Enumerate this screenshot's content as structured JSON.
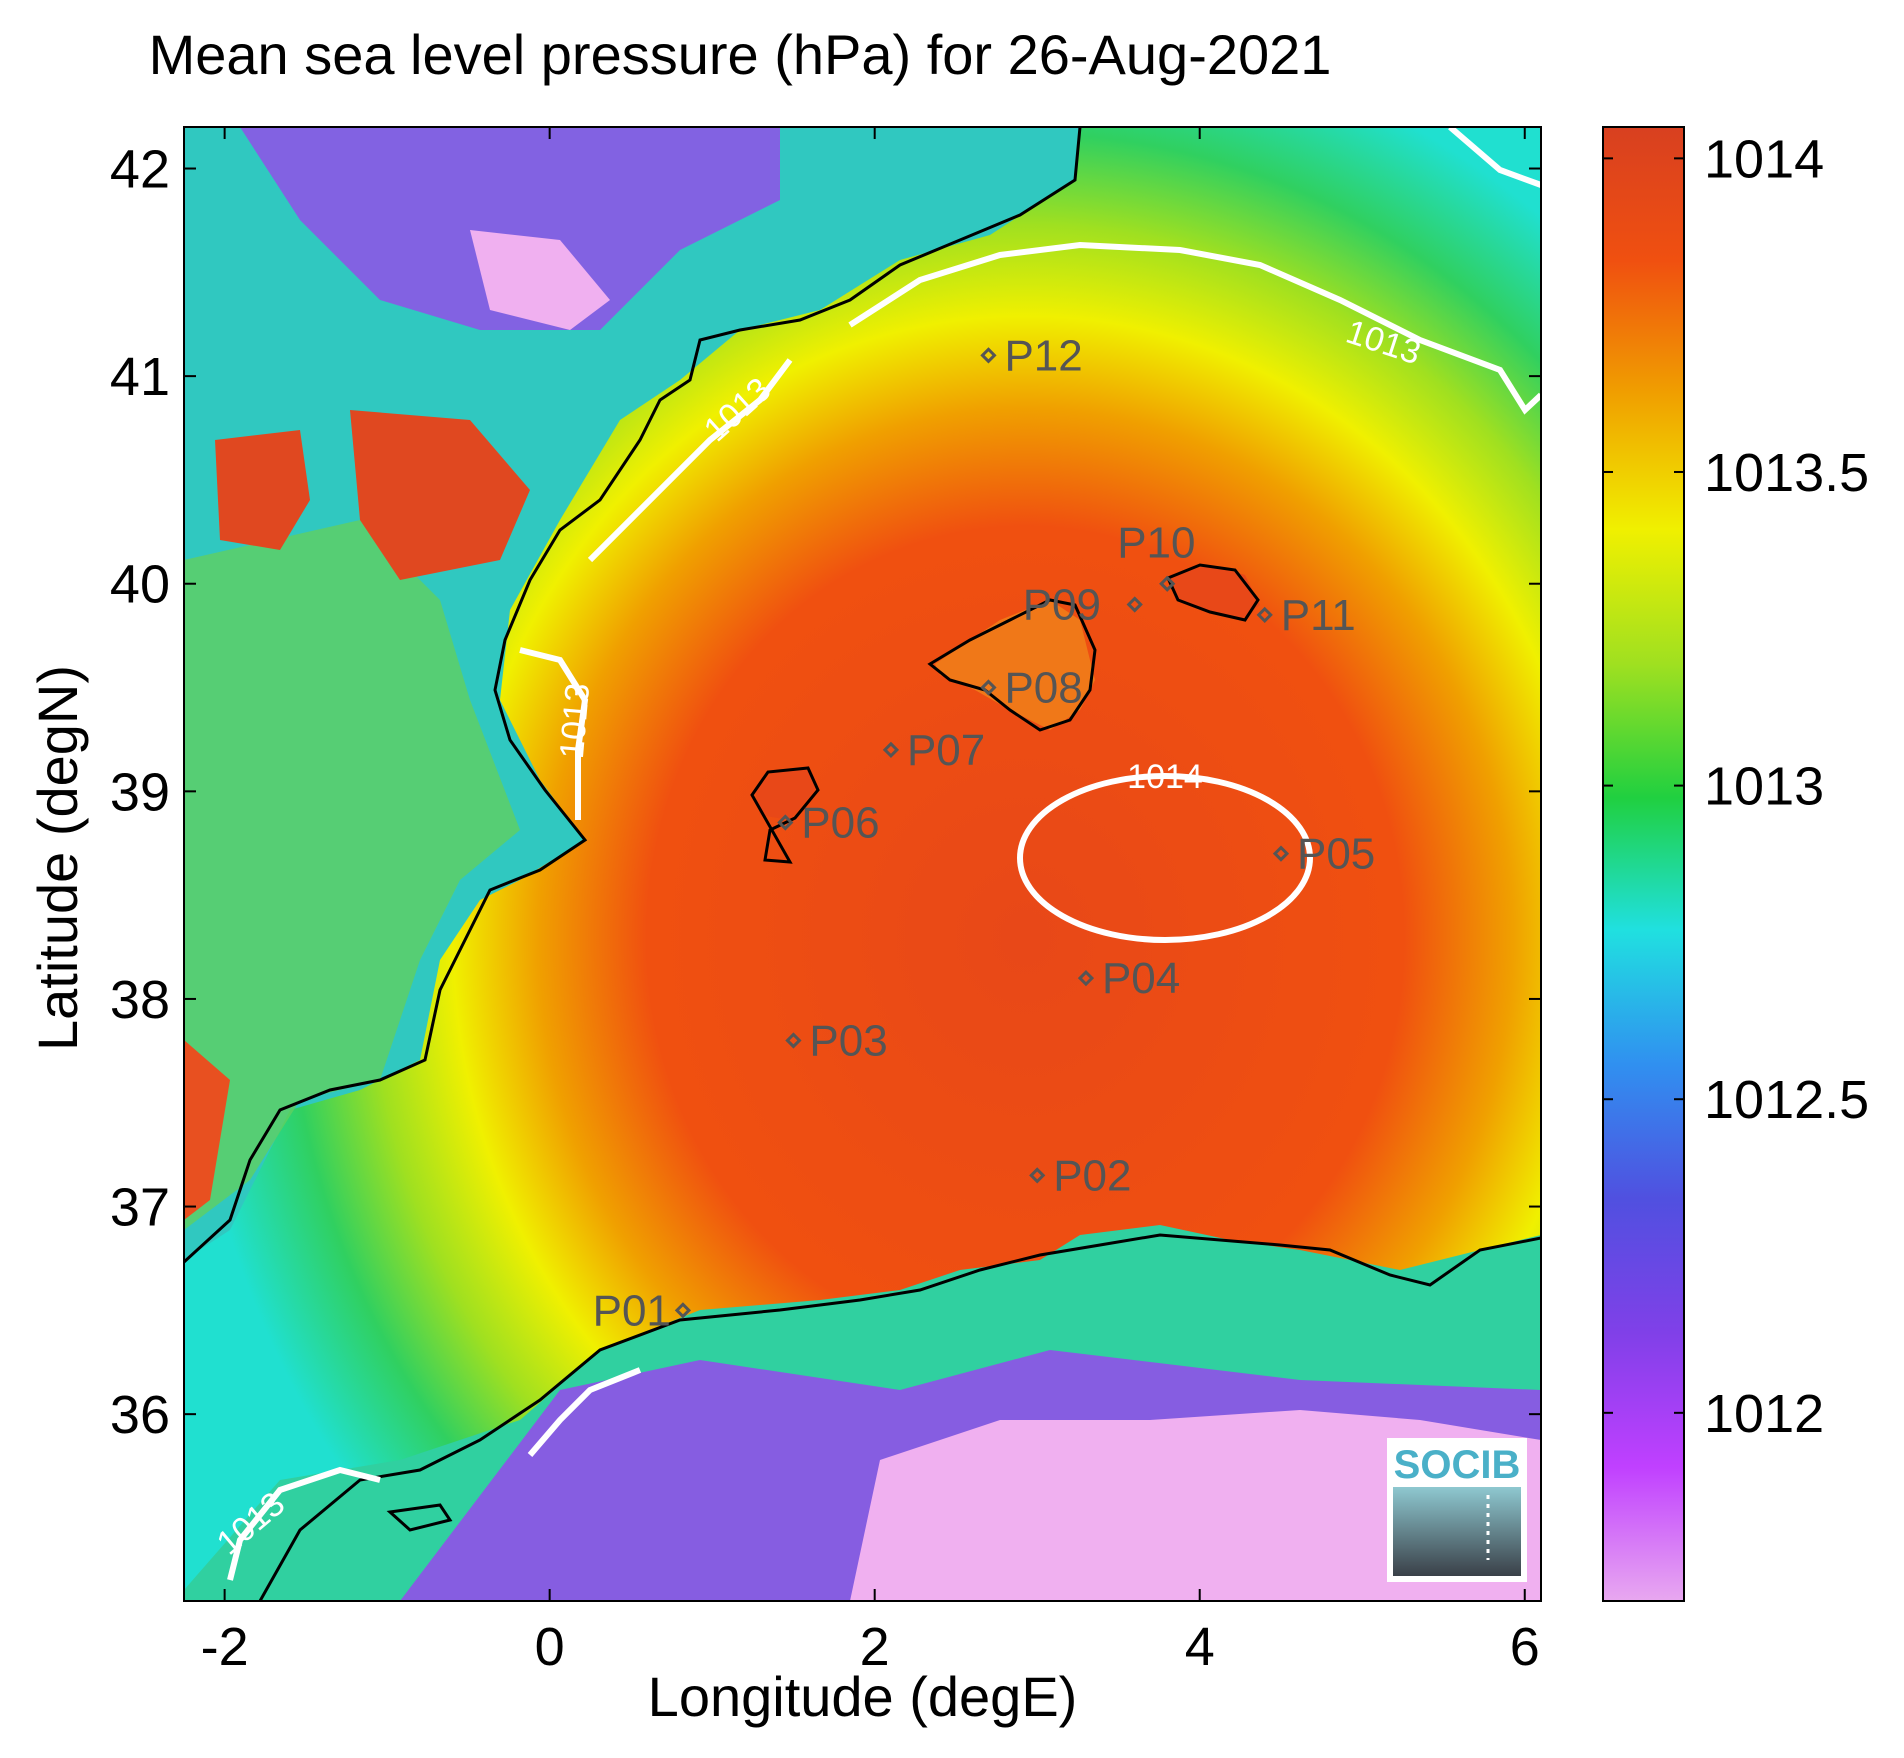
{
  "title": "Mean sea level pressure (hPa) for 26-Aug-2021",
  "axes": {
    "xlabel": "Longitude (degE)",
    "ylabel": "Latitude (degN)",
    "xlim": [
      -2.25,
      6.1
    ],
    "ylim": [
      35.1,
      42.2
    ],
    "xticks": [
      "-2",
      "0",
      "2",
      "4",
      "6"
    ],
    "yticks": [
      "36",
      "37",
      "38",
      "39",
      "40",
      "41",
      "42"
    ]
  },
  "colorbar": {
    "range": [
      1011.7,
      1014.05
    ],
    "ticks": [
      "1012",
      "1012.5",
      "1013",
      "1013.5",
      "1014"
    ],
    "colormap": [
      "#e8a8f0",
      "#c040ff",
      "#8040e8",
      "#5050e0",
      "#3090f0",
      "#20e0e0",
      "#20d040",
      "#a0e020",
      "#f0f000",
      "#f0a000",
      "#f05010",
      "#d84020"
    ]
  },
  "contours": [
    {
      "level": "1014"
    },
    {
      "level": "1013"
    },
    {
      "level": "1013"
    },
    {
      "level": "1013"
    },
    {
      "level": "1013"
    }
  ],
  "stations": [
    {
      "name": "P01",
      "lon": 0.82,
      "lat": 36.5
    },
    {
      "name": "P02",
      "lon": 3.0,
      "lat": 37.15
    },
    {
      "name": "P03",
      "lon": 1.5,
      "lat": 37.8
    },
    {
      "name": "P04",
      "lon": 3.3,
      "lat": 38.1
    },
    {
      "name": "P05",
      "lon": 4.5,
      "lat": 38.7
    },
    {
      "name": "P06",
      "lon": 1.45,
      "lat": 38.85
    },
    {
      "name": "P07",
      "lon": 2.1,
      "lat": 39.2
    },
    {
      "name": "P08",
      "lon": 2.7,
      "lat": 39.5
    },
    {
      "name": "P09",
      "lon": 3.6,
      "lat": 39.9
    },
    {
      "name": "P10",
      "lon": 3.8,
      "lat": 40.0
    },
    {
      "name": "P11",
      "lon": 4.4,
      "lat": 39.85
    },
    {
      "name": "P12",
      "lon": 2.7,
      "lat": 41.1
    }
  ],
  "logo": {
    "text": "SOCIB"
  }
}
